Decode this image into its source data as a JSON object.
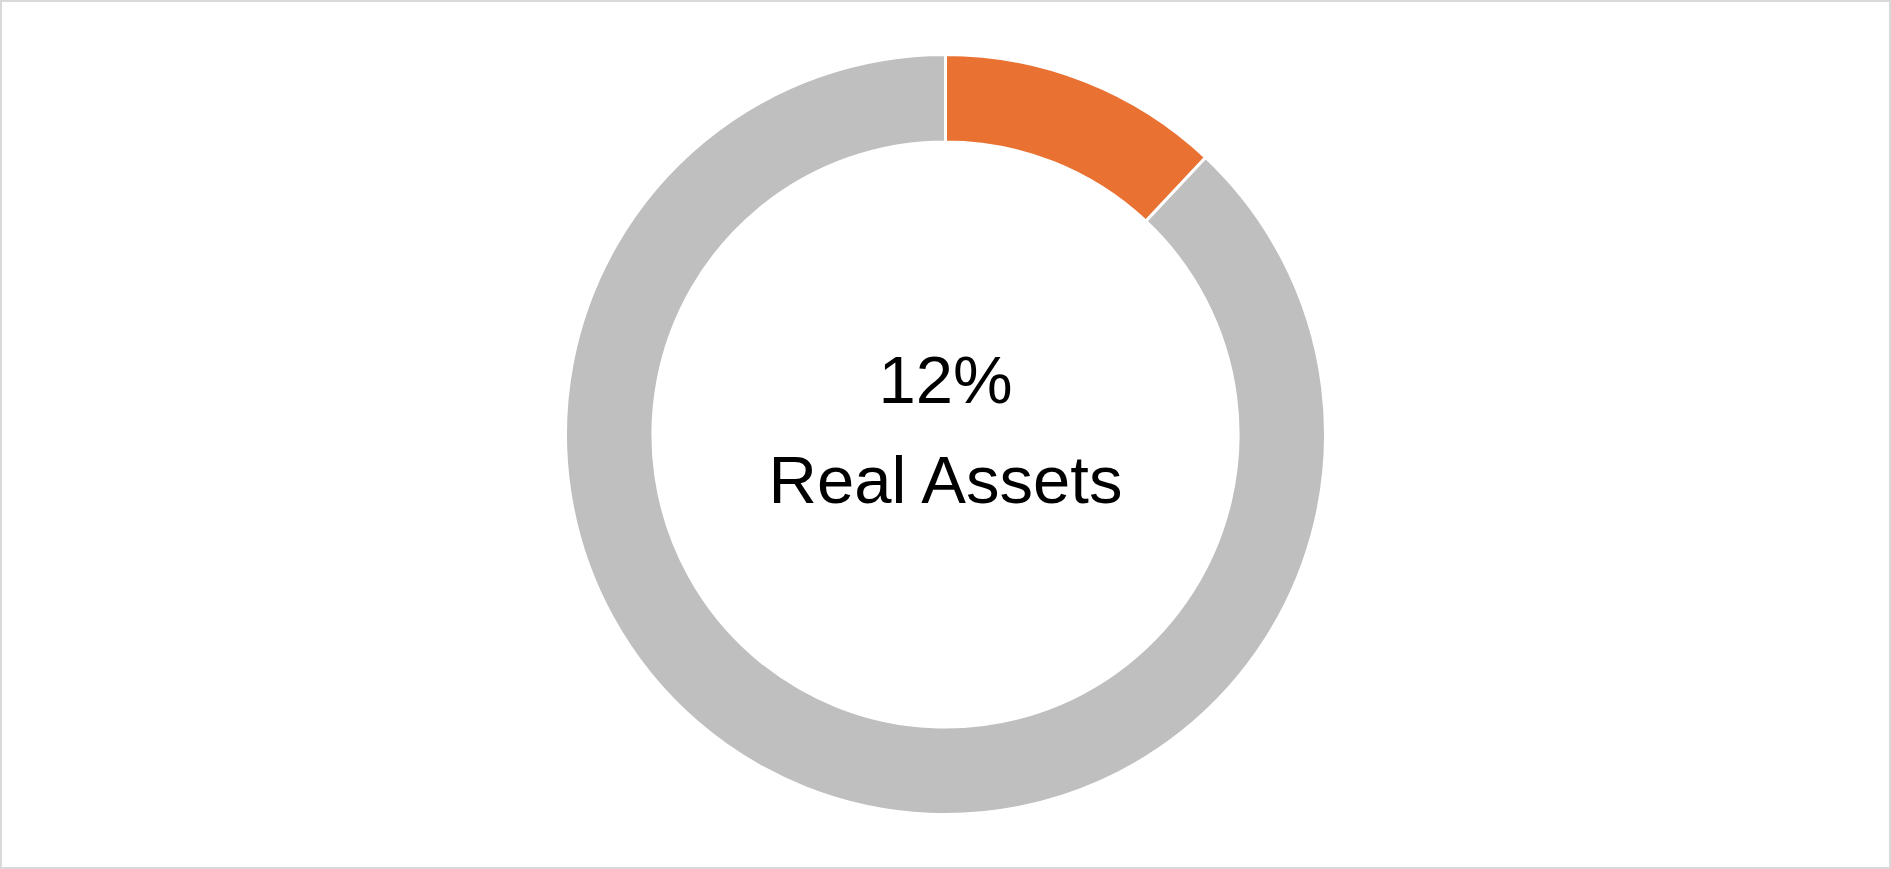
{
  "chart_data": {
    "type": "donut",
    "categories": [
      "Real Assets",
      null
    ],
    "values": [
      12,
      88
    ],
    "colors": [
      "#e97132",
      "#bfbfbf"
    ],
    "value_labels": [
      "12%",
      null
    ]
  }
}
